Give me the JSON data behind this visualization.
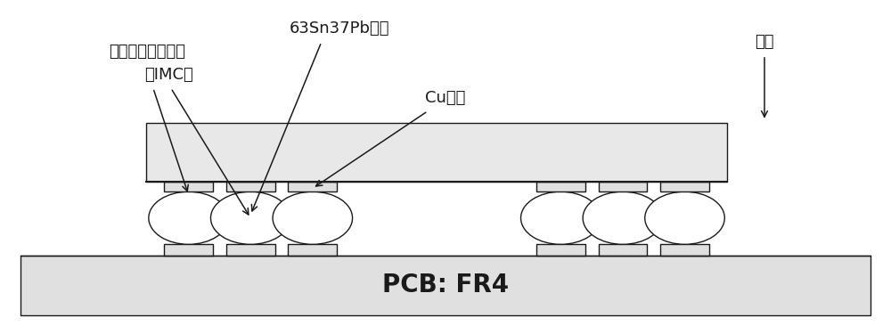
{
  "bg_color": "#ffffff",
  "border_color": "#1a1a1a",
  "pcb_color": "#e0e0e0",
  "component_color": "#e8e8e8",
  "solder_color": "#ffffff",
  "text_color": "#1a1a1a",
  "label_63sn": "63Sn37Pb焊料",
  "label_imc": "界面金属间化合物",
  "label_imc2": "（IMC）",
  "label_cu": "Cu焊盘",
  "label_resistor": "电阵",
  "label_pcb": "PCB: FR4",
  "label_font_size": 13,
  "pcb_label_font_size": 20,
  "fig_width": 10.0,
  "fig_height": 3.75,
  "dpi": 100
}
